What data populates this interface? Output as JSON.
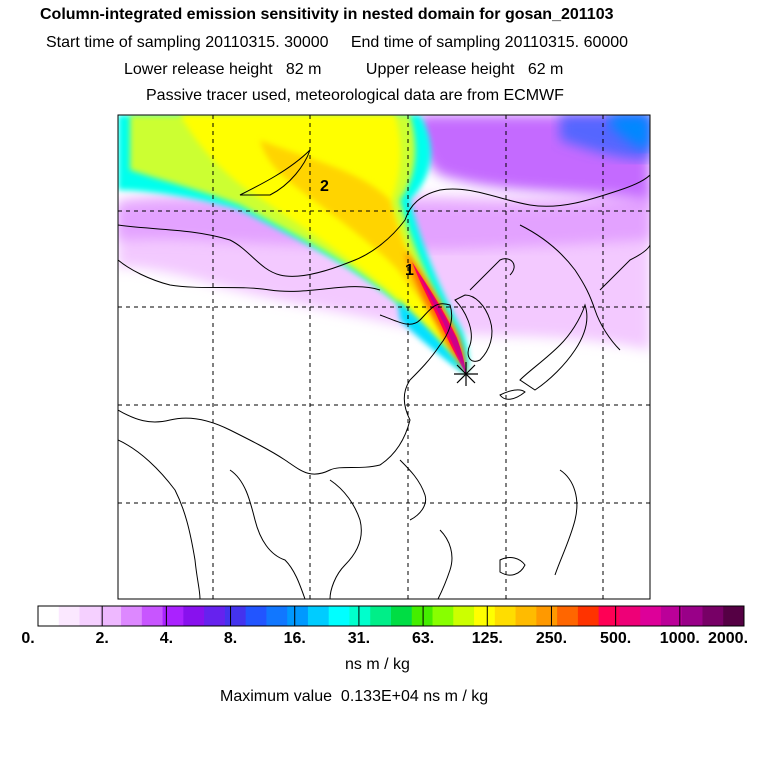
{
  "header": {
    "title": "Column-integrated emission sensitivity in nested domain for gosan_201103",
    "start_label": "Start time of sampling",
    "start_value": "20110315. 30000",
    "end_label": "End time of sampling",
    "end_value": "20110315. 60000",
    "lower_label": "Lower release height",
    "lower_value": "82 m",
    "upper_label": "Upper release height",
    "upper_value": "62 m",
    "note": "Passive tracer used, meteorological data are from ECMWF"
  },
  "map": {
    "labels": [
      "1",
      "2"
    ],
    "release_marker": "star-icon"
  },
  "colorbar": {
    "tick_labels": [
      "0.",
      "2.",
      "4.",
      "8.",
      "16.",
      "31.",
      "63.",
      "125.",
      "250.",
      "500.",
      "1000.",
      "2000."
    ],
    "colors": [
      "#ffffff",
      "#fbe8ff",
      "#f5d0ff",
      "#eeb8ff",
      "#dd88ff",
      "#c855ff",
      "#aa22ff",
      "#8811ee",
      "#6622ee",
      "#4433ee",
      "#2255ff",
      "#1177ff",
      "#0099ff",
      "#00ccff",
      "#00ffff",
      "#00ffcc",
      "#00ee88",
      "#00dd44",
      "#44ee00",
      "#88ff00",
      "#ccff00",
      "#ffff00",
      "#ffdd00",
      "#ffbb00",
      "#ff9900",
      "#ff6600",
      "#ff3300",
      "#ff0055",
      "#ee0077",
      "#dd0099",
      "#bb0099",
      "#990088",
      "#770066",
      "#550044"
    ],
    "unit": "ns m / kg"
  },
  "footer": {
    "max_label": "Maximum value",
    "max_value": "0.133E+04",
    "max_unit": "ns m / kg"
  }
}
